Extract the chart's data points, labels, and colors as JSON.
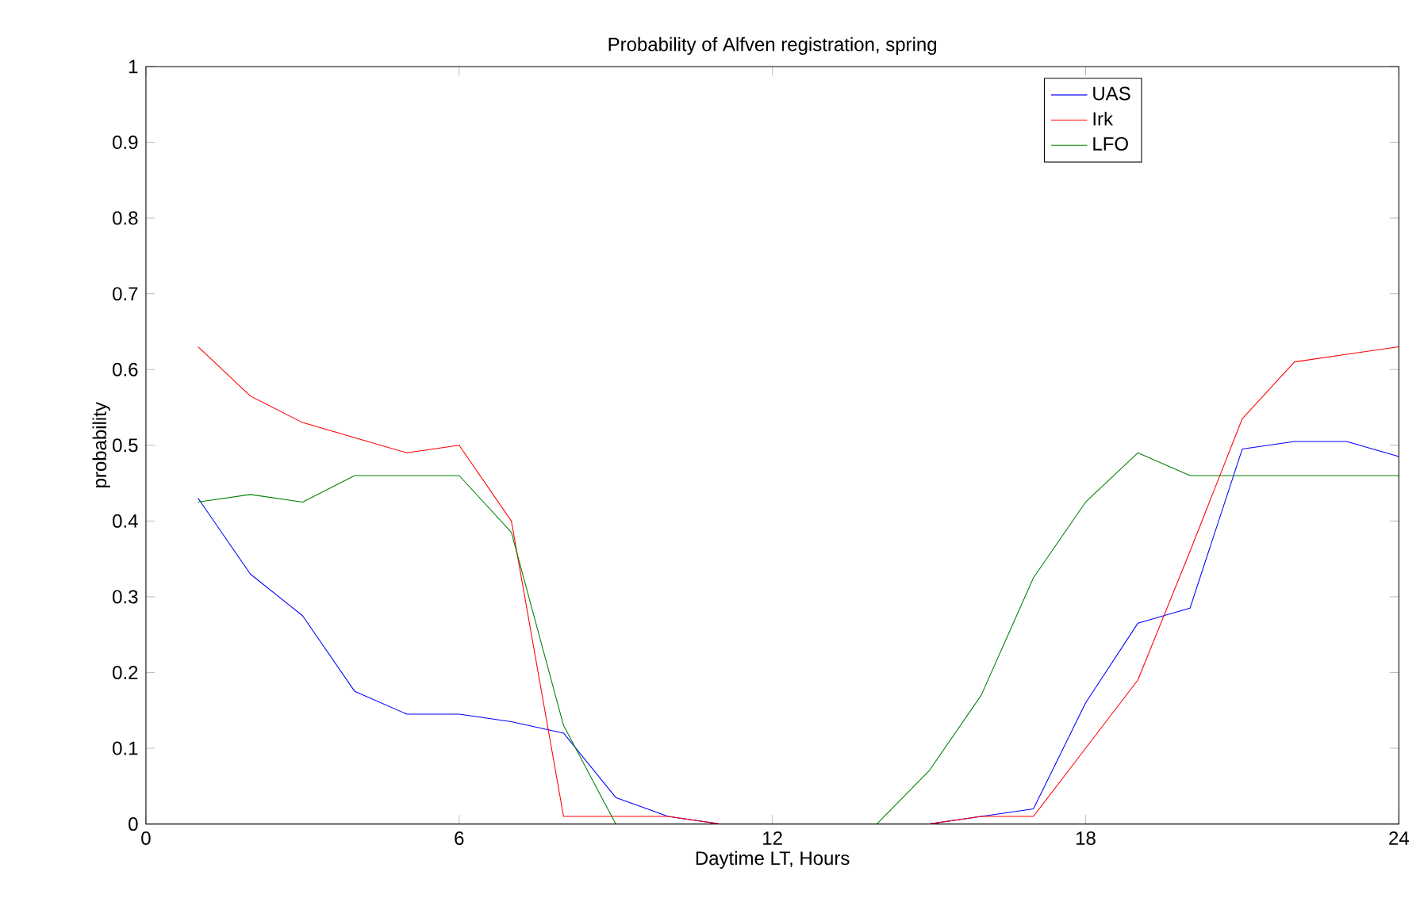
{
  "chart_data": {
    "type": "line",
    "title": "Probability of Alfven registration, spring",
    "xlabel": "Daytime LT, Hours",
    "ylabel": "probability",
    "x": [
      1,
      2,
      3,
      4,
      5,
      6,
      7,
      8,
      9,
      10,
      11,
      12,
      13,
      14,
      15,
      16,
      17,
      18,
      19,
      20,
      21,
      22,
      23,
      24
    ],
    "series": [
      {
        "name": "UAS",
        "color": "#0000ff",
        "values": [
          0.43,
          0.33,
          0.275,
          0.175,
          0.145,
          0.145,
          0.135,
          0.12,
          0.035,
          0.01,
          0,
          null,
          null,
          null,
          0,
          0.01,
          0.02,
          0.16,
          0.265,
          0.285,
          0.495,
          0.505,
          0.505,
          0.485
        ]
      },
      {
        "name": "Irk",
        "color": "#ff0000",
        "values": [
          0.63,
          0.565,
          0.53,
          0.51,
          0.49,
          0.5,
          0.4,
          0.01,
          0.01,
          0.01,
          0,
          null,
          null,
          null,
          0,
          0.01,
          0.01,
          0.1,
          0.19,
          0.36,
          0.535,
          0.61,
          0.62,
          0.63
        ]
      },
      {
        "name": "LFO",
        "color": "#008000",
        "values": [
          0.425,
          0.435,
          0.425,
          0.46,
          0.46,
          0.46,
          0.385,
          0.13,
          0,
          null,
          null,
          null,
          null,
          0,
          0.07,
          0.17,
          0.325,
          0.425,
          0.49,
          0.46,
          0.46,
          0.46,
          0.46,
          0.46
        ]
      }
    ],
    "xlim": [
      0,
      24
    ],
    "xticks": [
      0,
      6,
      12,
      18,
      24
    ],
    "ylim": [
      0,
      1
    ],
    "yticks": [
      0,
      0.1,
      0.2,
      0.3,
      0.4,
      0.5,
      0.6,
      0.7,
      0.8,
      0.9,
      1
    ],
    "grid": false,
    "legend": "top right",
    "marker": "none",
    "line_style": "solid"
  }
}
